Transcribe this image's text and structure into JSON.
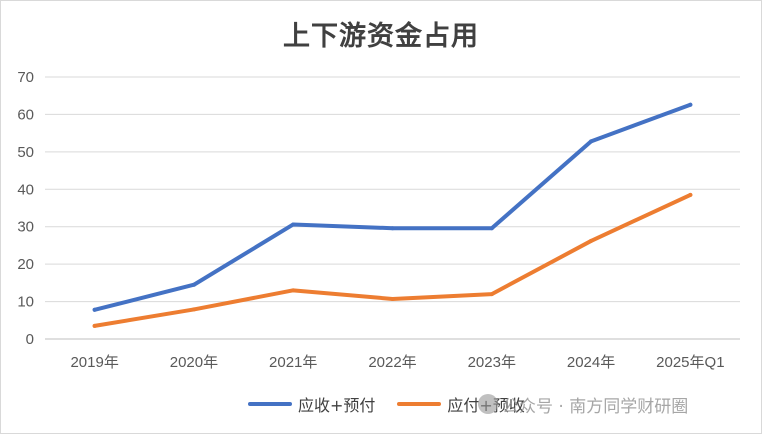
{
  "chart_data": {
    "type": "line",
    "title": "上下游资金占用",
    "categories": [
      "2019年",
      "2020年",
      "2021年",
      "2022年",
      "2023年",
      "2024年",
      "2025年Q1"
    ],
    "series": [
      {
        "name": "应收+预付",
        "color": "#4472c4",
        "values": [
          7.8,
          14.5,
          30.6,
          29.6,
          29.6,
          52.8,
          62.6
        ]
      },
      {
        "name": "应付+预收",
        "color": "#ed7d31",
        "values": [
          3.5,
          7.9,
          13.0,
          10.7,
          12.0,
          26.2,
          38.5
        ]
      }
    ],
    "ylim": [
      0,
      70
    ],
    "yticks": [
      0,
      10,
      20,
      30,
      40,
      50,
      60,
      70
    ],
    "grid": true,
    "legend_position": "bottom"
  },
  "watermark": {
    "text": "公众号 · 南方同学财研圈"
  }
}
